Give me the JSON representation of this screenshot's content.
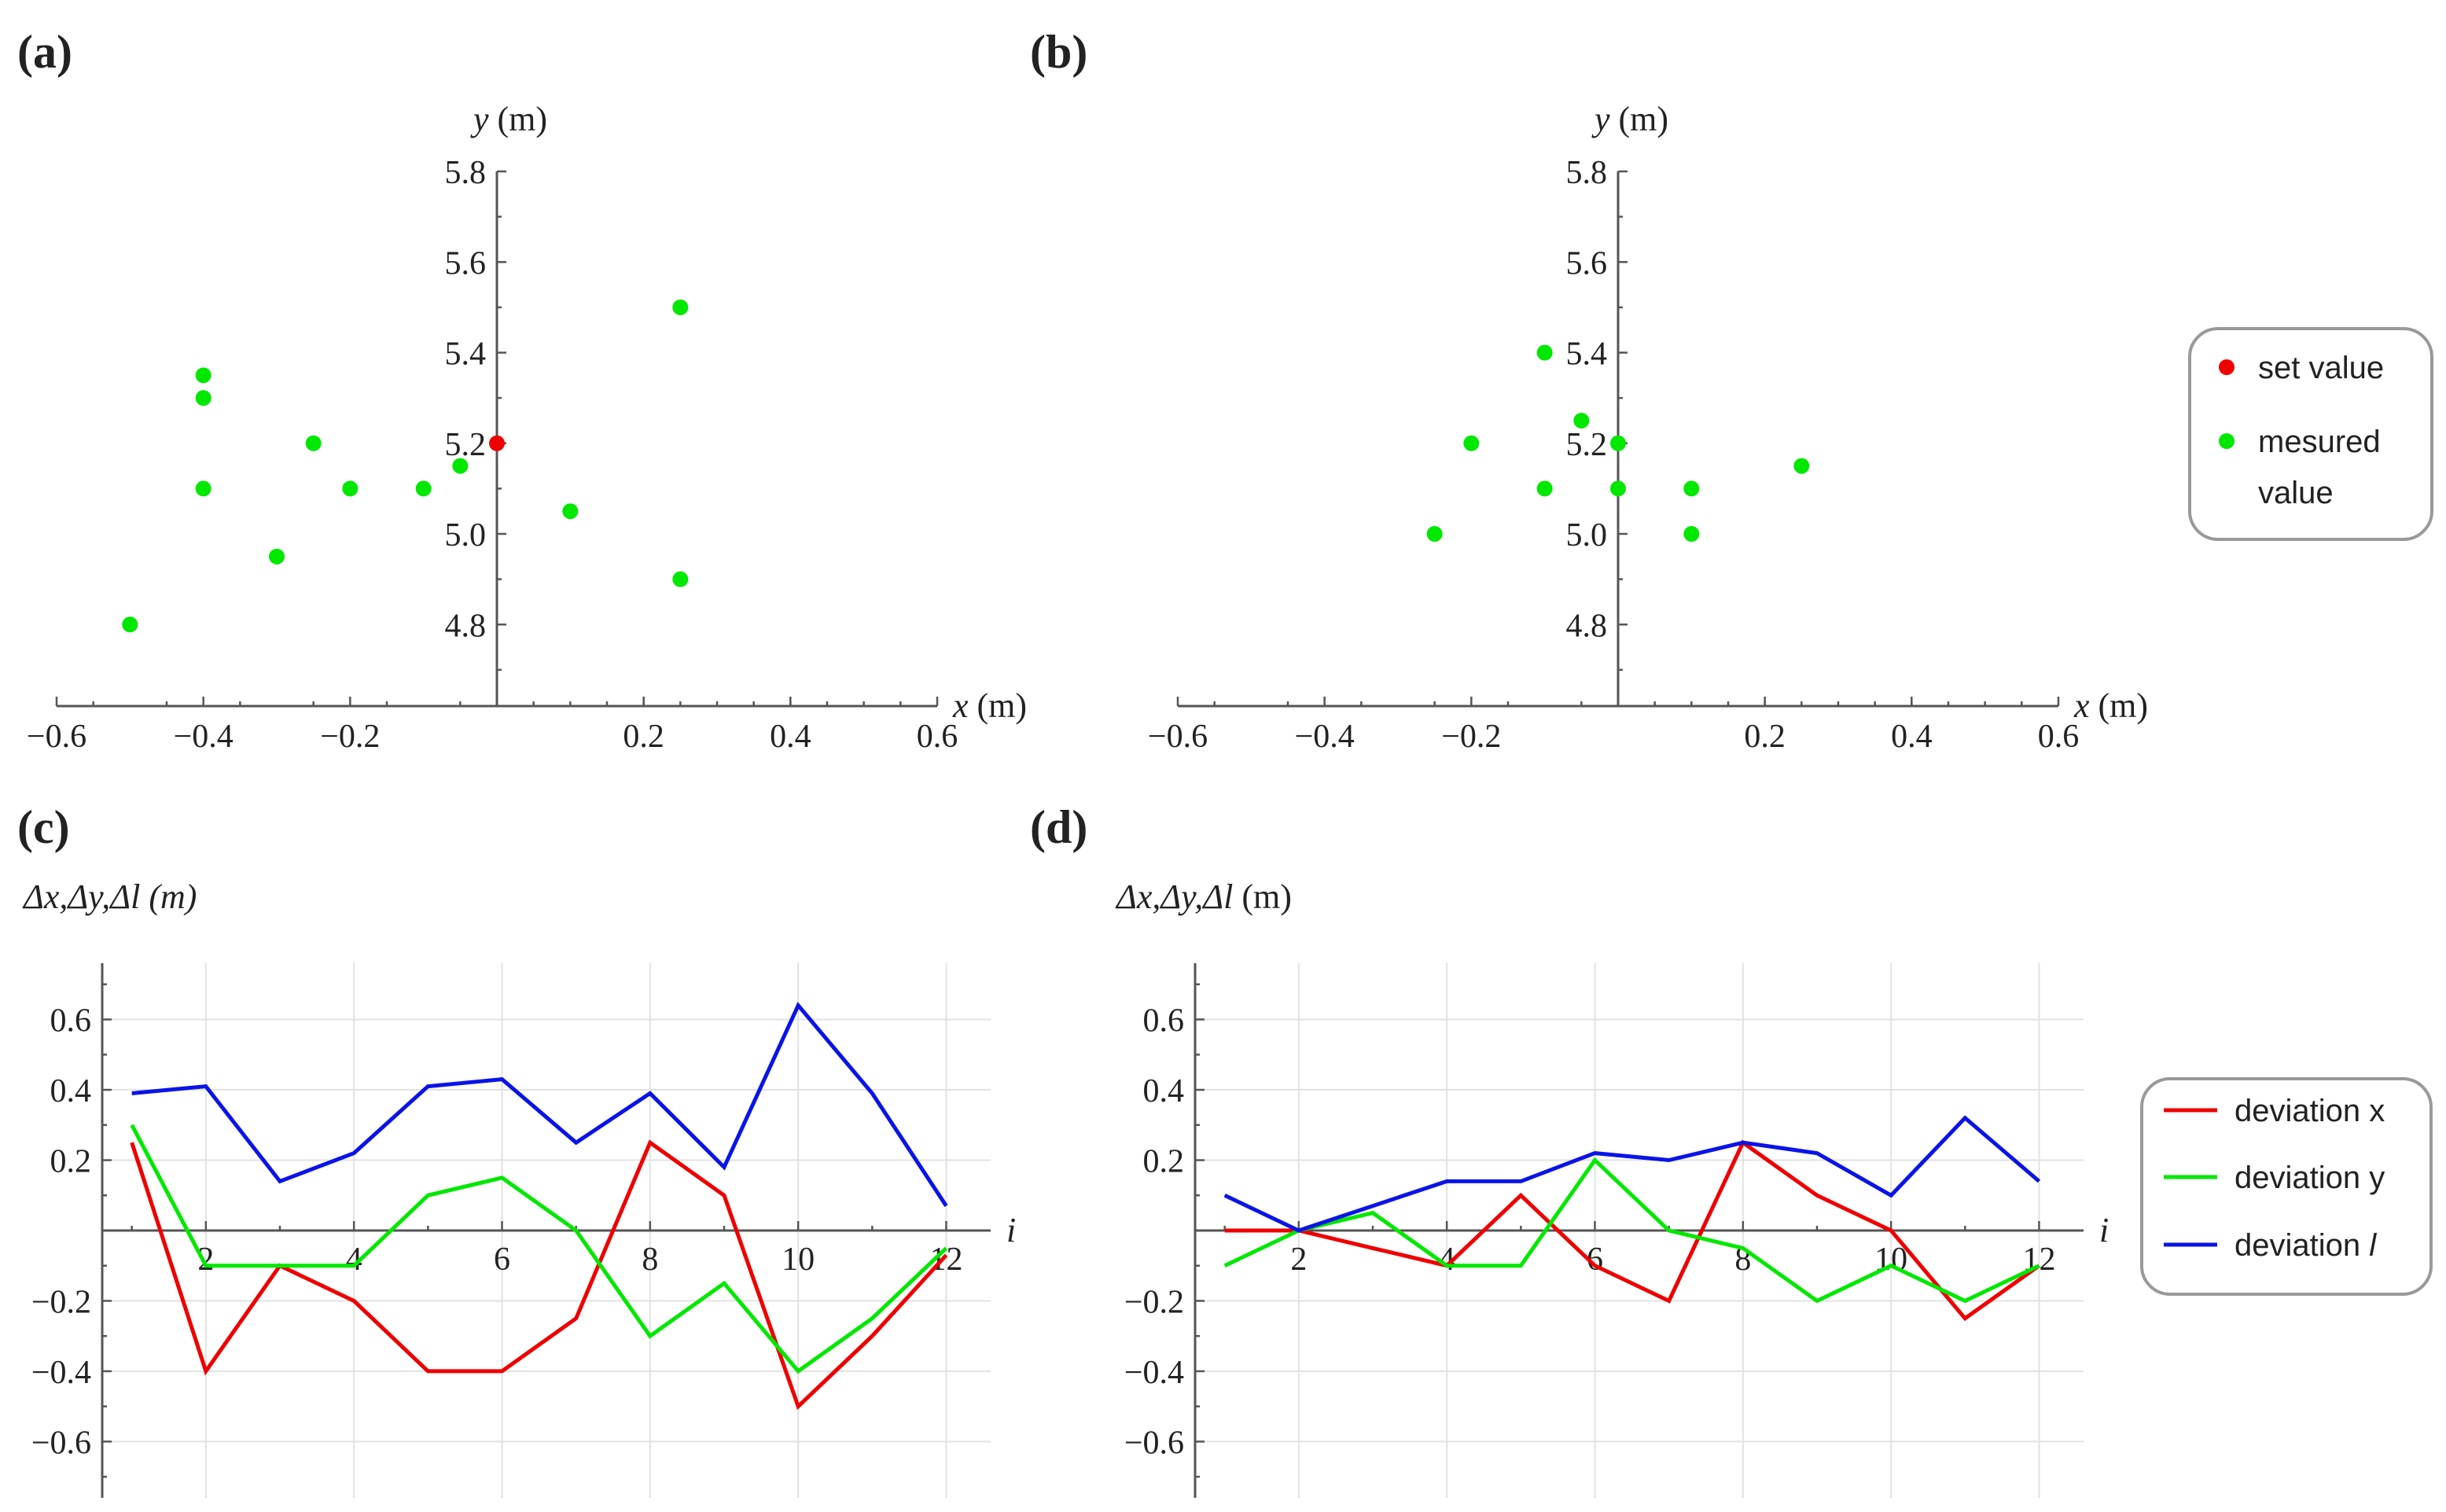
{
  "figure": {
    "legend_top": {
      "items": [
        {
          "label": "set value",
          "color": "#ee0000"
        },
        {
          "label": "mesured value",
          "label_lines": [
            "mesured",
            "value"
          ],
          "color": "#00e800"
        }
      ]
    },
    "legend_bottom": {
      "items": [
        {
          "label": "deviation x",
          "color": "#ee0000"
        },
        {
          "label": "deviation y",
          "color": "#00e800"
        },
        {
          "label_prefix": "deviation ",
          "label_var": "l",
          "color": "#0a14e6"
        }
      ]
    }
  },
  "chart_data": [
    {
      "panel": "(a)",
      "type": "scatter",
      "xlabel_var": "x",
      "xlabel_unit": " (m)",
      "ylabel_var": "y",
      "ylabel_unit": " (m)",
      "xlim": [
        -0.6,
        0.6
      ],
      "ylim": [
        4.62,
        5.8
      ],
      "x_ticks": [
        -0.6,
        -0.4,
        -0.2,
        0.2,
        0.4,
        0.6
      ],
      "x_tick_labels": [
        "−0.6",
        "−0.4",
        "−0.2",
        "0.2",
        "0.4",
        "0.6"
      ],
      "y_ticks": [
        4.8,
        5.0,
        5.2,
        5.4,
        5.6,
        5.8
      ],
      "y_tick_labels": [
        "4.8",
        "5.0",
        "5.2",
        "5.4",
        "5.6",
        "5.8"
      ],
      "series": [
        {
          "name": "mesured value",
          "color": "#00e800",
          "points": [
            [
              -0.5,
              4.8
            ],
            [
              -0.4,
              5.35
            ],
            [
              -0.4,
              5.3
            ],
            [
              -0.4,
              5.1
            ],
            [
              -0.3,
              4.95
            ],
            [
              -0.25,
              5.2
            ],
            [
              -0.2,
              5.1
            ],
            [
              -0.1,
              5.1
            ],
            [
              -0.05,
              5.15
            ],
            [
              0.1,
              5.05
            ],
            [
              0.25,
              5.5
            ],
            [
              0.25,
              4.9
            ]
          ]
        },
        {
          "name": "set value",
          "color": "#ee0000",
          "points": [
            [
              0.0,
              5.2
            ]
          ]
        }
      ]
    },
    {
      "panel": "(b)",
      "type": "scatter",
      "xlabel_var": "x",
      "xlabel_unit": " (m)",
      "ylabel_var": "y",
      "ylabel_unit": " (m)",
      "xlim": [
        -0.6,
        0.6
      ],
      "ylim": [
        4.62,
        5.8
      ],
      "x_ticks": [
        -0.6,
        -0.4,
        -0.2,
        0.2,
        0.4,
        0.6
      ],
      "x_tick_labels": [
        "−0.6",
        "−0.4",
        "−0.2",
        "0.2",
        "0.4",
        "0.6"
      ],
      "y_ticks": [
        4.8,
        5.0,
        5.2,
        5.4,
        5.6,
        5.8
      ],
      "y_tick_labels": [
        "4.8",
        "5.0",
        "5.2",
        "5.4",
        "5.6",
        "5.8"
      ],
      "series": [
        {
          "name": "mesured value",
          "color": "#00e800",
          "points": [
            [
              -0.25,
              5.0
            ],
            [
              -0.2,
              5.2
            ],
            [
              -0.1,
              5.4
            ],
            [
              -0.1,
              5.1
            ],
            [
              -0.05,
              5.25
            ],
            [
              0.0,
              5.2
            ],
            [
              0.0,
              5.1
            ],
            [
              0.1,
              5.1
            ],
            [
              0.1,
              5.0
            ],
            [
              0.25,
              5.15
            ]
          ]
        },
        {
          "name": "set value",
          "color": "#ee0000",
          "points": []
        }
      ]
    },
    {
      "panel": "(c)",
      "type": "line",
      "ylabel": "Δx,Δy,Δl (m)",
      "ylabel_italic_unit": true,
      "xlabel_var": "i",
      "xlim": [
        0.6,
        12.6
      ],
      "ylim": [
        -0.76,
        0.76
      ],
      "x_ticks": [
        2,
        4,
        6,
        8,
        10,
        12
      ],
      "x_tick_labels": [
        "2",
        "4",
        "6",
        "8",
        "10",
        "12"
      ],
      "y_ticks": [
        -0.6,
        -0.4,
        -0.2,
        0.2,
        0.4,
        0.6
      ],
      "y_tick_labels": [
        "−0.6",
        "−0.4",
        "−0.2",
        "0.2",
        "0.4",
        "0.6"
      ],
      "x": [
        1,
        2,
        3,
        4,
        5,
        6,
        7,
        8,
        9,
        10,
        11,
        12
      ],
      "series": [
        {
          "name": "deviation x",
          "color": "#ee0000",
          "values": [
            0.25,
            -0.4,
            -0.1,
            -0.2,
            -0.4,
            -0.4,
            -0.25,
            0.25,
            0.1,
            -0.5,
            -0.3,
            -0.07
          ]
        },
        {
          "name": "deviation y",
          "color": "#00e800",
          "values": [
            0.3,
            -0.1,
            -0.1,
            -0.1,
            0.1,
            0.15,
            0.0,
            -0.3,
            -0.15,
            -0.4,
            -0.25,
            -0.05
          ]
        },
        {
          "name": "deviation l",
          "color": "#0a14e6",
          "values": [
            0.39,
            0.41,
            0.14,
            0.22,
            0.41,
            0.43,
            0.25,
            0.39,
            0.18,
            0.64,
            0.39,
            0.07
          ]
        }
      ]
    },
    {
      "panel": "(d)",
      "type": "line",
      "ylabel": "Δx,Δy,Δl (m)",
      "ylabel_italic_unit": false,
      "xlabel_var": "i",
      "xlim": [
        0.6,
        12.6
      ],
      "ylim": [
        -0.76,
        0.76
      ],
      "x_ticks": [
        2,
        4,
        6,
        8,
        10,
        12
      ],
      "x_tick_labels": [
        "2",
        "4",
        "6",
        "8",
        "10",
        "12"
      ],
      "y_ticks": [
        -0.6,
        -0.4,
        -0.2,
        0.2,
        0.4,
        0.6
      ],
      "y_tick_labels": [
        "−0.6",
        "−0.4",
        "−0.2",
        "0.2",
        "0.4",
        "0.6"
      ],
      "x": [
        1,
        2,
        3,
        4,
        5,
        6,
        7,
        8,
        9,
        10,
        11,
        12
      ],
      "series": [
        {
          "name": "deviation x",
          "color": "#ee0000",
          "values": [
            0.0,
            0.0,
            -0.05,
            -0.1,
            0.1,
            -0.1,
            -0.2,
            0.25,
            0.1,
            0.0,
            -0.25,
            -0.1
          ]
        },
        {
          "name": "deviation y",
          "color": "#00e800",
          "values": [
            -0.1,
            0.0,
            0.05,
            -0.1,
            -0.1,
            0.2,
            0.0,
            -0.05,
            -0.2,
            -0.1,
            -0.2,
            -0.1
          ]
        },
        {
          "name": "deviation l",
          "color": "#0a14e6",
          "values": [
            0.1,
            0.0,
            0.07,
            0.14,
            0.14,
            0.22,
            0.2,
            0.25,
            0.22,
            0.1,
            0.32,
            0.14
          ]
        }
      ]
    }
  ]
}
